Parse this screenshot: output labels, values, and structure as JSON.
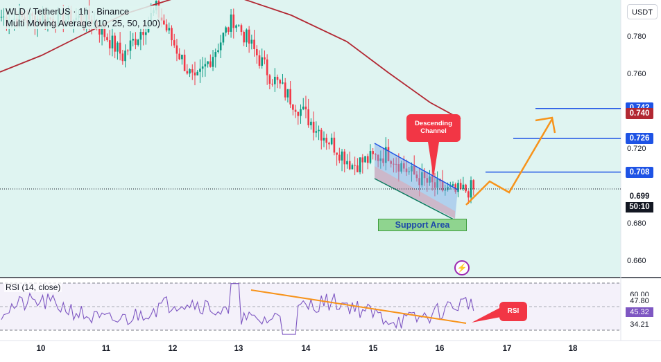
{
  "legend": {
    "symbol": "WLD / TetherUS · 1h · Binance",
    "indicator": "Multi Moving Average (10, 25, 50, 100)"
  },
  "rsi_legend": "RSI (14, close)",
  "currency": "USDT",
  "price_axis_labels": [
    "0.780",
    "0.760",
    "0.720",
    "0.680",
    "0.660"
  ],
  "price_tags": [
    {
      "value": "0.742",
      "color": "#1e53e5"
    },
    {
      "value": "0.740",
      "color": "#b22833"
    },
    {
      "value": "0.726",
      "color": "#1e53e5"
    },
    {
      "value": "0.708",
      "color": "#1e53e5"
    }
  ],
  "last_price": {
    "value": "0.699",
    "countdown": "50:10"
  },
  "rsi_axis": {
    "upper": "60.00",
    "tag1": "47.80",
    "tag2": "45.32",
    "tag3": "34.21"
  },
  "x_labels": [
    "10",
    "11",
    "12",
    "13",
    "14",
    "15",
    "16",
    "17",
    "18"
  ],
  "annotations": {
    "channel": "Descending Channel",
    "support": "Support Area",
    "rsi": "RSI"
  },
  "colors": {
    "up": "#089981",
    "down": "#f23645",
    "ma100": "#b22833",
    "level_line": "#1e53e5",
    "projection": "#f7931a",
    "rsi_line": "#7e57c2"
  },
  "chart_data": {
    "type": "candlestick",
    "ylim": [
      0.652,
      0.8
    ],
    "y_ticks": [
      0.78,
      0.76,
      0.72,
      0.68,
      0.66
    ],
    "levels": [
      0.742,
      0.726,
      0.708
    ],
    "ma100_value": 0.74,
    "last_price": 0.699,
    "x_ticks": [
      "10",
      "11",
      "12",
      "13",
      "14",
      "15",
      "16",
      "17",
      "18"
    ],
    "ohlc_key_points": [
      {
        "x": 2,
        "close": 0.79
      },
      {
        "x": 35,
        "close": 0.79
      },
      {
        "x": 47,
        "close": 0.77
      },
      {
        "x": 60,
        "close": 0.795
      },
      {
        "x": 75,
        "close": 0.755
      },
      {
        "x": 90,
        "close": 0.79
      },
      {
        "x": 104,
        "close": 0.76
      },
      {
        "x": 120,
        "close": 0.735
      },
      {
        "x": 136,
        "close": 0.712
      },
      {
        "x": 150,
        "close": 0.718
      },
      {
        "x": 158,
        "close": 0.708
      },
      {
        "x": 168,
        "close": 0.7
      },
      {
        "x": 176,
        "close": 0.697
      },
      {
        "x": 182,
        "close": 0.699
      }
    ],
    "rsi": {
      "period": 14,
      "ylim": [
        25,
        65
      ],
      "levels": [
        60.0,
        47.8,
        34.21
      ],
      "current": 45.32
    }
  }
}
